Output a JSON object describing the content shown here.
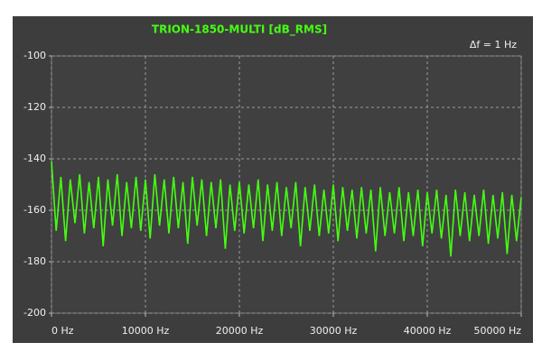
{
  "chart_data": {
    "type": "line",
    "title": "TRION-1850-MULTI [dB_RMS]",
    "annotation": "Δf = 1 Hz",
    "color": "#44ff11",
    "grid": true,
    "xlim": [
      0,
      50000
    ],
    "ylim": [
      -200,
      -100
    ],
    "xticks": [
      {
        "value": 0,
        "label": "0 Hz"
      },
      {
        "value": 10000,
        "label": "10000 Hz"
      },
      {
        "value": 20000,
        "label": "20000 Hz"
      },
      {
        "value": 30000,
        "label": "30000 Hz"
      },
      {
        "value": 40000,
        "label": "40000 Hz"
      },
      {
        "value": 50000,
        "label": "50000 Hz"
      }
    ],
    "yticks": [
      -100,
      -120,
      -140,
      -160,
      -180,
      -200
    ],
    "x": [
      0,
      500,
      1000,
      1500,
      2000,
      2500,
      3000,
      3500,
      4000,
      4500,
      5000,
      5500,
      6000,
      6500,
      7000,
      7500,
      8000,
      8500,
      9000,
      9500,
      10000,
      10500,
      11000,
      11500,
      12000,
      12500,
      13000,
      13500,
      14000,
      14500,
      15000,
      15500,
      16000,
      16500,
      17000,
      17500,
      18000,
      18500,
      19000,
      19500,
      20000,
      20500,
      21000,
      21500,
      22000,
      22500,
      23000,
      23500,
      24000,
      24500,
      25000,
      25500,
      26000,
      26500,
      27000,
      27500,
      28000,
      28500,
      29000,
      29500,
      30000,
      30500,
      31000,
      31500,
      32000,
      32500,
      33000,
      33500,
      34000,
      34500,
      35000,
      35500,
      36000,
      36500,
      37000,
      37500,
      38000,
      38500,
      39000,
      39500,
      40000,
      40500,
      41000,
      41500,
      42000,
      42500,
      43000,
      43500,
      44000,
      44500,
      45000,
      45500,
      46000,
      46500,
      47000,
      47500,
      48000,
      48500,
      49000,
      49500,
      50000
    ],
    "values": [
      -141,
      -168,
      -147,
      -172,
      -148,
      -165,
      -146,
      -169,
      -149,
      -167,
      -147,
      -174,
      -148,
      -166,
      -146,
      -170,
      -149,
      -167,
      -147,
      -168,
      -148,
      -171,
      -146,
      -166,
      -148,
      -169,
      -147,
      -167,
      -149,
      -173,
      -147,
      -166,
      -148,
      -170,
      -149,
      -167,
      -148,
      -175,
      -150,
      -168,
      -149,
      -169,
      -150,
      -167,
      -148,
      -172,
      -150,
      -168,
      -149,
      -170,
      -151,
      -167,
      -149,
      -174,
      -151,
      -168,
      -150,
      -170,
      -152,
      -169,
      -150,
      -172,
      -151,
      -168,
      -152,
      -171,
      -151,
      -169,
      -152,
      -176,
      -151,
      -170,
      -153,
      -169,
      -151,
      -172,
      -153,
      -170,
      -152,
      -174,
      -153,
      -169,
      -152,
      -171,
      -154,
      -178,
      -152,
      -170,
      -153,
      -172,
      -154,
      -170,
      -152,
      -173,
      -154,
      -171,
      -153,
      -177,
      -154,
      -172,
      -155
    ]
  }
}
